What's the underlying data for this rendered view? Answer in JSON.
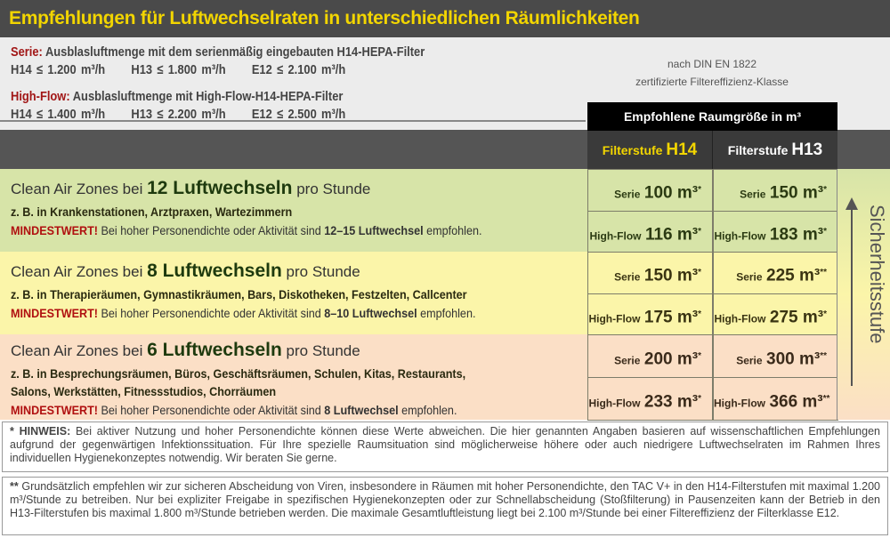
{
  "title": "Empfehlungen für Luftwechselraten in unterschiedlichen Räumlichkeiten",
  "serie": {
    "label": "Serie:",
    "text": " Ausblasluftmenge mit dem serienmäßig eingebauten H14-HEPA-Filter",
    "values": [
      "H14 ≤ 1.200 m³/h",
      "H13 ≤ 1.800 m³/h",
      "E12 ≤ 2.100 m³/h"
    ]
  },
  "highflow": {
    "label": "High-Flow:",
    "text": " Ausblasluftmenge mit High-Flow-H14-HEPA-Filter",
    "values": [
      "H14 ≤ 1.400 m³/h",
      "H13 ≤ 2.200 m³/h",
      "E12 ≤ 2.500 m³/h"
    ]
  },
  "din": {
    "line1": "nach DIN EN 1822",
    "line2": "zertifizierte Filtereffizienz-Klasse"
  },
  "table": {
    "group_header": "Empfohlene Raumgröße in m³",
    "col_h14_prefix": "Filterstufe ",
    "col_h14": "H14",
    "col_h13_prefix": "Filterstufe ",
    "col_h13": "H13",
    "side_label": "Sicherheitsstufe",
    "colors": {
      "h14_header": "#f2d500",
      "green": "#d7e4a8",
      "yellow": "#fbf5a9",
      "peach": "#fbdfc6"
    },
    "sections": [
      {
        "pre": "Clean Air Zones bei ",
        "bold": "12 Luftwechseln",
        "post": " pro Stunde",
        "examples": [
          "z. B. in Krankenstationen, Arztpraxen, Wartezimmern"
        ],
        "mw": "MINDESTWERT!",
        "mw_text": " Bei hoher Personendichte oder Aktivität sind ",
        "mw_bold": "12–15 Luftwechsel",
        "mw_end": " empfohlen.",
        "rows": [
          {
            "label": "Serie",
            "h14": "100 m³",
            "h14_mark": "*",
            "h13": "150 m³",
            "h13_mark": "*"
          },
          {
            "label": "High-Flow",
            "h14": "116 m³",
            "h14_mark": "*",
            "h13": "183 m³",
            "h13_mark": "*"
          }
        ]
      },
      {
        "pre": "Clean Air Zones bei ",
        "bold": "8 Luftwechseln",
        "post": " pro Stunde",
        "examples": [
          "z. B. in Therapieräumen, Gymnastikräumen, Bars, Diskotheken, Festzelten, Callcenter"
        ],
        "mw": "MINDESTWERT!",
        "mw_text": " Bei hoher Personendichte oder Aktivität sind ",
        "mw_bold": "8–10 Luftwechsel",
        "mw_end": " empfohlen.",
        "rows": [
          {
            "label": "Serie",
            "h14": "150 m³",
            "h14_mark": "*",
            "h13": "225 m³",
            "h13_mark": "**"
          },
          {
            "label": "High-Flow",
            "h14": "175 m³",
            "h14_mark": "*",
            "h13": "275 m³",
            "h13_mark": "*"
          }
        ]
      },
      {
        "pre": "Clean Air Zones bei ",
        "bold": "6 Luftwechseln",
        "post": " pro Stunde",
        "examples": [
          "z. B. in Besprechungsräumen, Büros, Geschäftsräumen, Schulen, Kitas, Restaurants,",
          "Salons, Werkstätten, Fitnessstudios, Chorräumen"
        ],
        "mw": "MINDESTWERT!",
        "mw_text": " Bei hoher Personendichte oder Aktivität sind ",
        "mw_bold": "8 Luftwechsel",
        "mw_end": " empfohlen.",
        "rows": [
          {
            "label": "Serie",
            "h14": "200 m³",
            "h14_mark": "*",
            "h13": "300 m³",
            "h13_mark": "**"
          },
          {
            "label": "High-Flow",
            "h14": "233 m³",
            "h14_mark": "*",
            "h13": "366 m³",
            "h13_mark": "**"
          }
        ]
      }
    ]
  },
  "note1": {
    "label": "* HINWEIS:",
    "text": " Bei aktiver Nutzung und hoher Personendichte können diese Werte abweichen. Die hier genannten Angaben basieren auf wissenschaftlichen Empfehlungen aufgrund der gegenwärtigen Infektionssituation. Für Ihre spezielle Raumsituation sind möglicherweise höhere oder auch niedrigere Luftwechselraten im Rahmen Ihres individuellen Hygienekonzeptes notwendig. Wir beraten Sie gerne."
  },
  "note2": {
    "label": "**",
    "text": " Grundsätzlich empfehlen wir zur sicheren Abscheidung von Viren, insbesondere in Räumen mit hoher Personendichte, den TAC V+ in den H14-Filterstufen mit maximal 1.200 m³/Stunde zu betreiben. Nur bei expliziter Freigabe in spezifischen Hygienekonzepten oder zur Schnellabscheidung (Stoßfilterung) in Pausenzeiten kann der Betrieb in den H13-Filterstufen bis maximal 1.800 m³/Stunde betrieben werden. Die maximale Gesamtluftleistung liegt bei 2.100 m³/Stunde bei einer Filtereffizienz der Filterklasse E12."
  }
}
